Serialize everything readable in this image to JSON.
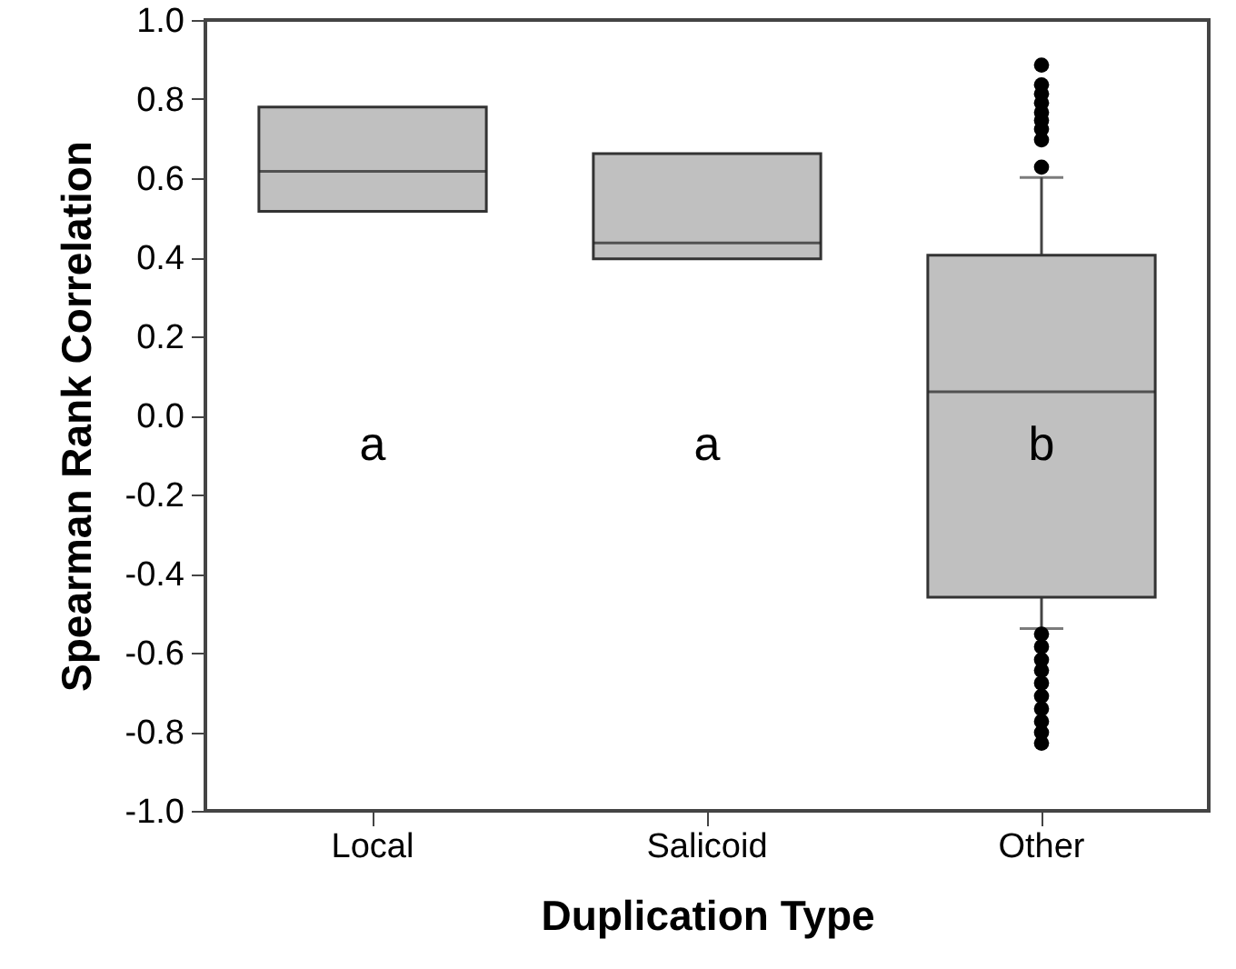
{
  "chart_data": {
    "type": "box",
    "xlabel": "Duplication Type",
    "ylabel": "Spearman Rank Correlation",
    "categories": [
      "Local",
      "Salicoid",
      "Other"
    ],
    "series": [
      {
        "color": "#c0c0c0",
        "boxes": [
          {
            "low": 0.516,
            "q1": 0.516,
            "median": 0.617,
            "q3": 0.78,
            "high": 0.78
          },
          {
            "low": 0.396,
            "q1": 0.396,
            "median": 0.436,
            "q3": 0.662,
            "high": 0.662
          },
          {
            "low": -0.539,
            "q1": -0.46,
            "median": 0.06,
            "q3": 0.405,
            "high": 0.602,
            "outliers": [
              0.886,
              0.836,
              0.813,
              0.79,
              0.766,
              0.746,
              0.724,
              0.697,
              0.628,
              -0.553,
              -0.585,
              -0.618,
              -0.645,
              -0.677,
              -0.71,
              -0.742,
              -0.774,
              -0.802,
              -0.829
            ]
          }
        ]
      }
    ],
    "ylim": [
      -1.0,
      1.0
    ],
    "yticks": [
      {
        "value": -1,
        "label": "-1.0"
      },
      -0.8,
      -0.6,
      -0.4,
      -0.2,
      {
        "value": 0,
        "label": "0.0"
      },
      0.2,
      0.4,
      0.6,
      0.8,
      {
        "value": 1,
        "label": "1.0"
      }
    ],
    "grid": false,
    "marker": "circle",
    "annotations": [
      "a",
      "a",
      "b"
    ]
  }
}
